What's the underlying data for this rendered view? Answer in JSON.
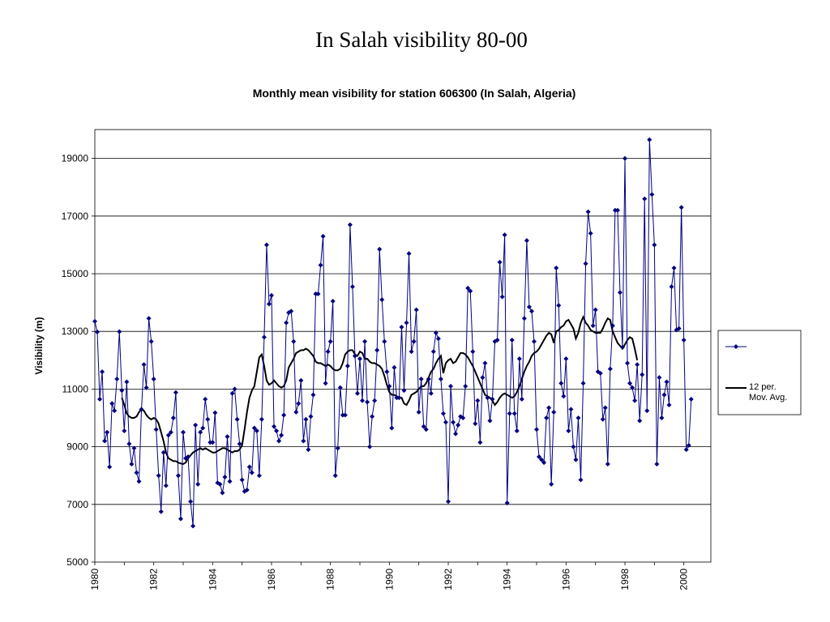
{
  "slide": {
    "title": "In Salah visibility 80-00"
  },
  "chart_data": {
    "type": "line",
    "title": "Monthly mean visibility for station 606300 (In Salah, Algeria)",
    "xlabel": "",
    "ylabel": "Visibility (m)",
    "xlim": [
      1980,
      2000.917
    ],
    "ylim": [
      5000,
      20000
    ],
    "x_ticks": [
      "1980",
      "1982",
      "1984",
      "1986",
      "1988",
      "1990",
      "1992",
      "1994",
      "1996",
      "1998",
      "2000"
    ],
    "y_ticks": [
      "5000",
      "7000",
      "9000",
      "11000",
      "13000",
      "15000",
      "17000",
      "19000"
    ],
    "grid": "horizontal",
    "legend_position": "right",
    "start_year": 1980,
    "series": [
      {
        "name": "",
        "color": "#000080",
        "marker": "diamond",
        "values": [
          13350,
          12980,
          10650,
          11600,
          9200,
          9500,
          8300,
          10500,
          10250,
          11350,
          12990,
          10950,
          9550,
          11250,
          9100,
          8400,
          8950,
          8100,
          7800,
          10300,
          11850,
          11050,
          13450,
          12650,
          11350,
          9600,
          8000,
          6750,
          8800,
          7650,
          9400,
          9500,
          10000,
          10880,
          8000,
          6500,
          9500,
          8600,
          8650,
          7100,
          6250,
          9750,
          7700,
          9500,
          9650,
          10650,
          9950,
          9150,
          9150,
          10180,
          7750,
          7700,
          7400,
          7950,
          9350,
          7800,
          10850,
          11000,
          9950,
          9100,
          7850,
          7450,
          7500,
          8300,
          8100,
          9650,
          9550,
          8000,
          9950,
          12800,
          16000,
          13950,
          14250,
          9700,
          9550,
          9200,
          9400,
          10100,
          13300,
          13650,
          13700,
          12650,
          10200,
          10500,
          11300,
          9200,
          9950,
          8900,
          10050,
          10800,
          14300,
          14300,
          15300,
          16300,
          11200,
          12300,
          12650,
          14050,
          8000,
          8950,
          11050,
          10100,
          10100,
          11800,
          16700,
          14550,
          12150,
          10850,
          12050,
          10600,
          12650,
          10550,
          9000,
          10050,
          10600,
          12350,
          15850,
          14100,
          12650,
          11600,
          11100,
          9650,
          11750,
          10700,
          10700,
          13150,
          10950,
          13300,
          15700,
          12300,
          12650,
          13750,
          10200,
          11350,
          9700,
          9600,
          11350,
          10850,
          12300,
          12950,
          12750,
          11350,
          10150,
          9850,
          7100,
          11100,
          9850,
          9450,
          9750,
          10050,
          10000,
          11100,
          14500,
          14400,
          12300,
          9800,
          10600,
          9150,
          11400,
          11900,
          10700,
          9900,
          10650,
          12650,
          12700,
          15400,
          14200,
          16350,
          7050,
          10150,
          12700,
          10150,
          9550,
          12050,
          10650,
          13450,
          16150,
          13850,
          13700,
          12650,
          9600,
          8650,
          8550,
          8450,
          10000,
          10350,
          7700,
          10200,
          15200,
          13900,
          11200,
          10750,
          12050,
          9550,
          10300,
          9000,
          8550,
          10000,
          7850,
          11200,
          15350,
          17150,
          16400,
          13200,
          13750,
          11600,
          11550,
          9950,
          10350,
          8400,
          11700,
          13200,
          17200,
          17200,
          14350,
          12450,
          19000,
          11900,
          11200,
          11050,
          10600,
          11850,
          9900,
          11500,
          17600,
          10250,
          19650,
          17750,
          16000,
          8400,
          11400,
          10000,
          10800,
          11250,
          10450,
          14550,
          15200,
          13050,
          13100,
          17300,
          12700,
          8900,
          9050,
          10650
        ]
      },
      {
        "name": "12 per. Mov. Avg.",
        "color": "#000000",
        "marker": "none",
        "start_index": 11,
        "values": [
          10700,
          10450,
          10150,
          10050,
          10000,
          10000,
          10050,
          10200,
          10300,
          10250,
          10100,
          10000,
          9950,
          10000,
          9950,
          9800,
          9500,
          9200,
          8800,
          8600,
          8550,
          8500,
          8500,
          8450,
          8420,
          8400,
          8450,
          8600,
          8700,
          8800,
          8850,
          8900,
          8950,
          8900,
          8950,
          8900,
          8850,
          8800,
          8800,
          8850,
          8900,
          8950,
          8950,
          8900,
          8850,
          8800,
          8850,
          8850,
          8900,
          9050,
          9600,
          10200,
          10700,
          10950,
          11100,
          11600,
          12100,
          12200,
          11800,
          11300,
          11150,
          11200,
          11300,
          11200,
          11100,
          11050,
          11100,
          11300,
          11750,
          11900,
          12050,
          12250,
          12300,
          12350,
          12350,
          12400,
          12350,
          12250,
          12150,
          11950,
          11900,
          11900,
          11850,
          11800,
          11850,
          11800,
          11700,
          11650,
          11650,
          11700,
          11900,
          12200,
          12300,
          12350,
          12350,
          12200,
          12150,
          12300,
          12250,
          12050,
          12050,
          11950,
          11900,
          11900,
          11850,
          11800,
          11700,
          11450,
          11150,
          10900,
          10800,
          10800,
          10750,
          10700,
          10700,
          10500,
          10450,
          10600,
          10800,
          10850,
          10900,
          11000,
          11100,
          11100,
          11200,
          11400,
          11600,
          11700,
          11900,
          12050,
          12150,
          11550,
          11900,
          12000,
          12050,
          11900,
          11950,
          12100,
          12250,
          12250,
          12200,
          12100,
          11950,
          11800,
          11600,
          11400,
          11200,
          11000,
          10800,
          10750,
          10700,
          10600,
          10450,
          10550,
          10700,
          10800,
          10850,
          10800,
          10750,
          10700,
          10750,
          10900,
          11100,
          11350,
          11600,
          11800,
          11950,
          12150,
          12250,
          12300,
          12400,
          12550,
          12700,
          12850,
          12950,
          12900,
          12600,
          13000,
          13050,
          13150,
          13200,
          13350,
          13400,
          13250,
          13100,
          12750,
          12950,
          13300,
          13500,
          13300,
          13200,
          13050,
          13000,
          12950,
          12950,
          12950,
          13100,
          13300,
          13450,
          13400,
          13000,
          12800,
          12600,
          12500,
          12400,
          12550,
          12700,
          12800,
          12750,
          12400,
          12000
        ]
      }
    ]
  }
}
